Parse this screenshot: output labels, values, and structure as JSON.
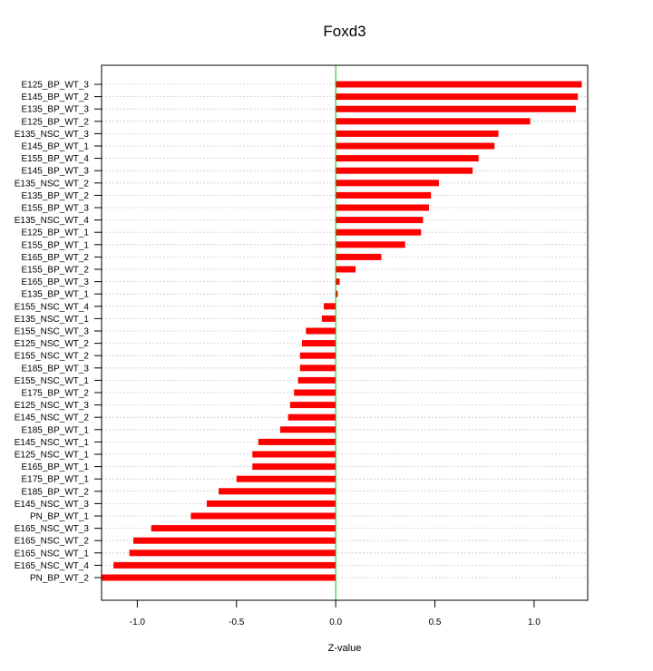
{
  "chart_data": {
    "type": "bar",
    "orientation": "horizontal",
    "title": "Foxd3",
    "xlabel": "Z-value",
    "ylabel": "",
    "xlim": [
      -1.18,
      1.27
    ],
    "x_ticks": [
      -1.0,
      -0.5,
      0.0,
      0.5,
      1.0
    ],
    "x_tick_labels": [
      "-1.0",
      "-0.5",
      "0.0",
      "0.5",
      "1.0"
    ],
    "grid": "horizontal dotted",
    "bar_color": "#ff0000",
    "zero_line_color": "#00cc00",
    "categories": [
      "E125_BP_WT_3",
      "E145_BP_WT_2",
      "E135_BP_WT_3",
      "E125_BP_WT_2",
      "E135_NSC_WT_3",
      "E145_BP_WT_1",
      "E155_BP_WT_4",
      "E145_BP_WT_3",
      "E135_NSC_WT_2",
      "E135_BP_WT_2",
      "E155_BP_WT_3",
      "E135_NSC_WT_4",
      "E125_BP_WT_1",
      "E155_BP_WT_1",
      "E165_BP_WT_2",
      "E155_BP_WT_2",
      "E165_BP_WT_3",
      "E135_BP_WT_1",
      "E155_NSC_WT_4",
      "E135_NSC_WT_1",
      "E155_NSC_WT_3",
      "E125_NSC_WT_2",
      "E155_NSC_WT_2",
      "E185_BP_WT_3",
      "E155_NSC_WT_1",
      "E175_BP_WT_2",
      "E125_NSC_WT_3",
      "E145_NSC_WT_2",
      "E185_BP_WT_1",
      "E145_NSC_WT_1",
      "E125_NSC_WT_1",
      "E165_BP_WT_1",
      "E175_BP_WT_1",
      "E185_BP_WT_2",
      "E145_NSC_WT_3",
      "PN_BP_WT_1",
      "E165_NSC_WT_3",
      "E165_NSC_WT_2",
      "E165_NSC_WT_1",
      "E165_NSC_WT_4",
      "PN_BP_WT_2"
    ],
    "values": [
      1.24,
      1.22,
      1.21,
      0.98,
      0.82,
      0.8,
      0.72,
      0.69,
      0.52,
      0.48,
      0.47,
      0.44,
      0.43,
      0.35,
      0.23,
      0.1,
      0.02,
      0.01,
      -0.06,
      -0.07,
      -0.15,
      -0.17,
      -0.18,
      -0.18,
      -0.19,
      -0.21,
      -0.23,
      -0.24,
      -0.28,
      -0.39,
      -0.42,
      -0.42,
      -0.5,
      -0.59,
      -0.65,
      -0.73,
      -0.93,
      -1.02,
      -1.04,
      -1.12,
      -1.18
    ]
  }
}
